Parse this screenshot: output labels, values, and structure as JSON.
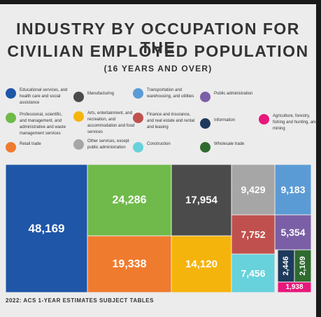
{
  "title_line1": "INDUSTRY BY OCCUPATION FOR THE",
  "title_line2": "CIVILIAN EMPLOYED POPULATION",
  "subtitle": "(16 YEARS AND OVER)",
  "footer": "2022: ACS 1-YEAR ESTIMATES SUBJECT TABLES",
  "legend": [
    {
      "label": "Educational services, and health care and social assistance",
      "color": "#1f56a8"
    },
    {
      "label": "Manufacturing",
      "color": "#4b4b4b"
    },
    {
      "label": "Transportation and warehousing, and utilities",
      "color": "#5b9bd5"
    },
    {
      "label": "Public administration",
      "color": "#7b5fa6"
    },
    {
      "label": "Professional, scientific, and management, and administrative and waste management services",
      "color": "#6fba4a"
    },
    {
      "label": "Arts, entertainment, and recreation, and accommodation and food services",
      "color": "#f5b40c"
    },
    {
      "label": "Finance and insurance, and real estate and rental and leasing",
      "color": "#c0504d"
    },
    {
      "label": "Information",
      "color": "#1d3a5c"
    },
    {
      "label": "Agriculture, forestry, fishing and hunting, and mining",
      "color": "#e8177b"
    },
    {
      "label": "Retail trade",
      "color": "#ef7b2e"
    },
    {
      "label": "Other services, except public administration",
      "color": "#a6a6a6"
    },
    {
      "label": "Construction",
      "color": "#67d1dc"
    },
    {
      "label": "Wholesale trade",
      "color": "#2f6b2f"
    }
  ],
  "chart_data": {
    "type": "treemap",
    "title": "INDUSTRY BY OCCUPATION FOR THE CIVILIAN EMPLOYED POPULATION",
    "subtitle": "(16 YEARS AND OVER)",
    "categories": [
      "Educational services, and health care and social assistance",
      "Professional, scientific, and management, and administrative and waste management services",
      "Retail trade",
      "Manufacturing",
      "Arts, entertainment, and recreation, and accommodation and food services",
      "Other services, except public administration",
      "Transportation and warehousing, and utilities",
      "Finance and insurance, and real estate and rental and leasing",
      "Construction",
      "Public administration",
      "Information",
      "Wholesale trade",
      "Agriculture, forestry, fishing and hunting, and mining"
    ],
    "values": [
      48169,
      24286,
      19338,
      17954,
      14120,
      9429,
      9183,
      7752,
      7456,
      5354,
      2446,
      2109,
      1938
    ],
    "value_labels": [
      "48,169",
      "24,286",
      "19,338",
      "17,954",
      "14,120",
      "9,429",
      "9,183",
      "7,752",
      "7,456",
      "5,354",
      "2,446",
      "2,109",
      "1,938"
    ],
    "colors": [
      "#1f56a8",
      "#6fba4a",
      "#ef7b2e",
      "#4b4b4b",
      "#f5b40c",
      "#a6a6a6",
      "#5b9bd5",
      "#c0504d",
      "#67d1dc",
      "#7b5fa6",
      "#1d3a5c",
      "#2f6b2f",
      "#e8177b"
    ]
  }
}
